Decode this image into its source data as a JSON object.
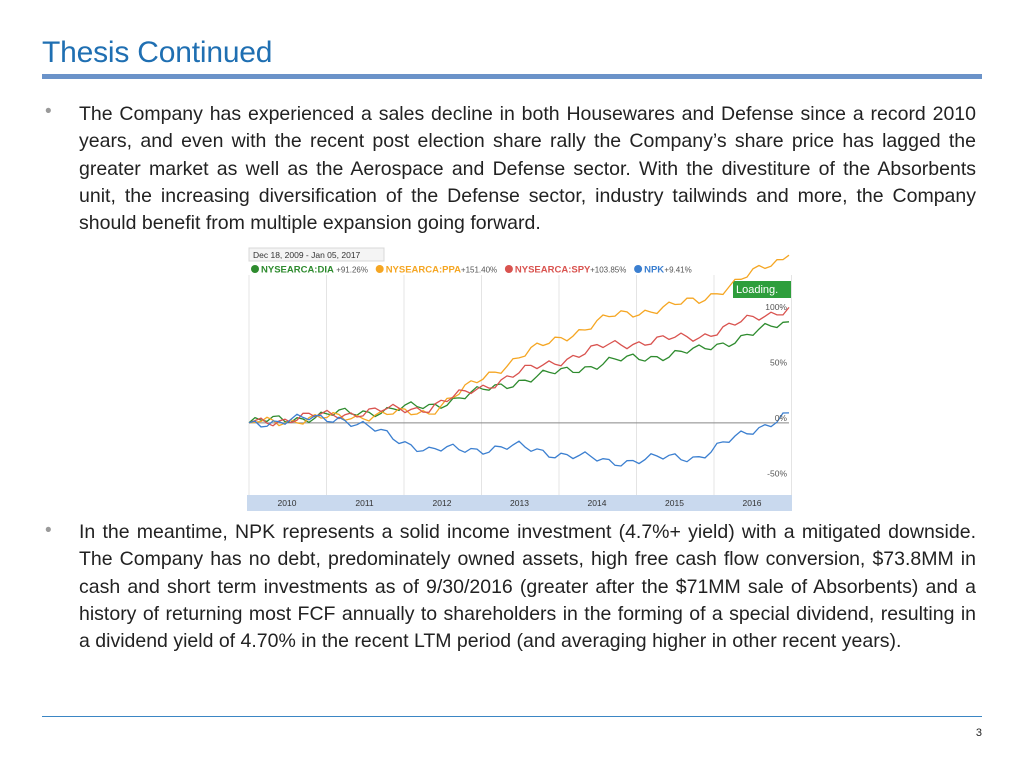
{
  "slide": {
    "title": "Thesis Continued",
    "page_number": "3",
    "bullets": [
      "The Company has experienced a sales decline in both Housewares and Defense since a record 2010 years, and even with the recent post election share rally the Company’s share price has lagged the greater market as well as the Aerospace and Defense sector.  With the divestiture of the Absorbents unit, the increasing diversification of the Defense sector, industry tailwinds and more, the Company should benefit from multiple expansion going forward.",
      "In the meantime, NPK represents a solid income investment (4.7%+ yield) with a mitigated downside.  The Company has no debt, predominately owned assets, high free cash flow conversion, $73.8MM in cash and short term investments as of 9/30/2016 (greater after the $71MM sale of Absorbents) and a history of returning most FCF annually to shareholders in the forming of a special dividend, resulting in a dividend yield of 4.70% in the recent LTM period (and averaging higher in other recent years)."
    ],
    "bullet_symbol": "•"
  },
  "chart_data": {
    "type": "line",
    "date_range": "Dec 18, 2009  -  Jan 05, 2017",
    "status": "Loading.",
    "x": [
      "2010",
      "2011",
      "2012",
      "2013",
      "2014",
      "2015",
      "2016"
    ],
    "y_ticks": [
      "100%",
      "50%",
      "0%",
      "-50%"
    ],
    "ylim": [
      -65,
      135
    ],
    "series": [
      {
        "name": "NYSEARCA:DIA",
        "change": "+91.26%",
        "color": "#2e8b2e",
        "values": [
          0,
          8,
          15,
          38,
          55,
          65,
          91
        ]
      },
      {
        "name": "NYSEARCA:PPA",
        "change": "+151.40%",
        "color": "#f5a623",
        "values": [
          0,
          5,
          10,
          60,
          95,
          110,
          151
        ]
      },
      {
        "name": "NYSEARCA:SPY",
        "change": "+103.85%",
        "color": "#d9534f",
        "values": [
          0,
          8,
          14,
          45,
          70,
          78,
          104
        ]
      },
      {
        "name": "NPK",
        "change": "+9.41%",
        "color": "#3b7fd0",
        "values": [
          0,
          5,
          -25,
          -22,
          -35,
          -30,
          9
        ]
      }
    ]
  }
}
